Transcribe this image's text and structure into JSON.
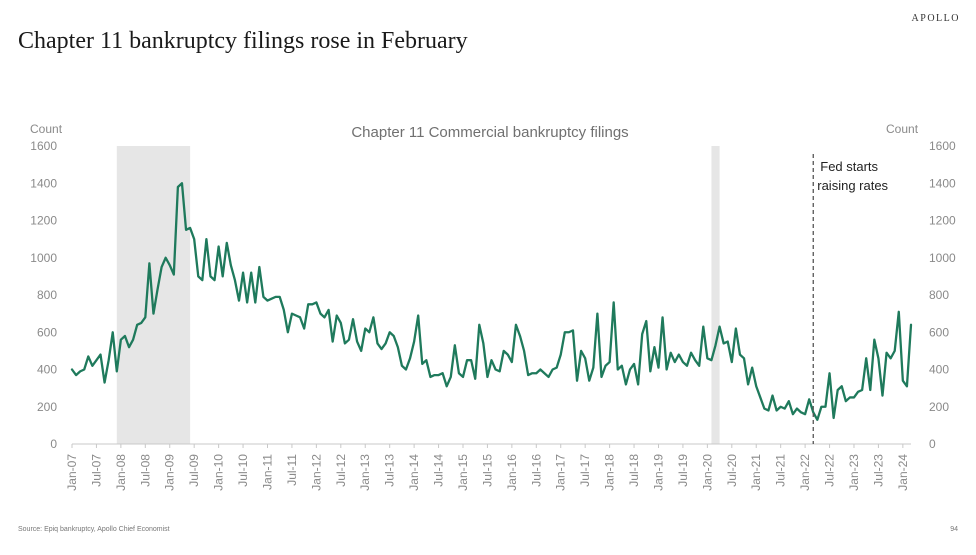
{
  "brand": "APOLLO",
  "headline": "Chapter 11 bankruptcy filings rose in February",
  "source": "Source: Epiq bankruptcy, Apollo Chief Economist",
  "page_number": "94",
  "colors": {
    "line": "#1f7a5c",
    "recession": "#e6e6e6",
    "axis_text": "#8a8a8a",
    "event_line": "#555555"
  },
  "chart_data": {
    "type": "line",
    "title": "Chapter 11 Commercial bankruptcy filings",
    "ylabel_left": "Count",
    "ylabel_right": "Count",
    "ylim": [
      0,
      1600
    ],
    "yticks": [
      0,
      200,
      400,
      600,
      800,
      1000,
      1200,
      1400,
      1600
    ],
    "x_start": "2007-01",
    "x_end": "2024-02",
    "xtick_labels": [
      "Jan-07",
      "Jul-07",
      "Jan-08",
      "Jul-08",
      "Jan-09",
      "Jul-09",
      "Jan-10",
      "Jul-10",
      "Jan-11",
      "Jul-11",
      "Jan-12",
      "Jul-12",
      "Jan-13",
      "Jul-13",
      "Jan-14",
      "Jul-14",
      "Jan-15",
      "Jul-15",
      "Jan-16",
      "Jul-16",
      "Jan-17",
      "Jul-17",
      "Jan-18",
      "Jul-18",
      "Jan-19",
      "Jul-19",
      "Jan-20",
      "Jul-20",
      "Jan-21",
      "Jul-21",
      "Jan-22",
      "Jul-22",
      "Jan-23",
      "Jul-23",
      "Jan-24"
    ],
    "recessions": [
      {
        "start": "2007-12",
        "end": "2009-06"
      },
      {
        "start": "2020-02",
        "end": "2020-04"
      }
    ],
    "annotation": {
      "date": "2022-03",
      "label_line1": "Fed starts",
      "label_line2": "raising rates"
    },
    "series": [
      {
        "name": "Chapter 11 Commercial bankruptcy filings",
        "values": [
          400,
          370,
          390,
          400,
          470,
          420,
          450,
          480,
          330,
          450,
          600,
          390,
          560,
          580,
          520,
          560,
          640,
          650,
          680,
          970,
          700,
          830,
          950,
          1000,
          960,
          910,
          1380,
          1400,
          1150,
          1160,
          1100,
          900,
          880,
          1100,
          900,
          880,
          1060,
          900,
          1080,
          960,
          880,
          770,
          920,
          760,
          920,
          760,
          950,
          790,
          770,
          780,
          790,
          790,
          720,
          600,
          700,
          690,
          680,
          620,
          750,
          750,
          760,
          700,
          680,
          720,
          550,
          690,
          650,
          540,
          560,
          670,
          550,
          500,
          620,
          600,
          680,
          540,
          510,
          540,
          600,
          580,
          520,
          420,
          400,
          460,
          550,
          690,
          430,
          450,
          360,
          370,
          370,
          380,
          310,
          360,
          530,
          380,
          360,
          450,
          450,
          350,
          640,
          540,
          360,
          450,
          400,
          390,
          500,
          480,
          440,
          640,
          580,
          500,
          370,
          380,
          380,
          400,
          380,
          360,
          400,
          410,
          480,
          600,
          600,
          610,
          340,
          500,
          460,
          340,
          410,
          700,
          360,
          420,
          440,
          760,
          400,
          420,
          320,
          400,
          430,
          320,
          590,
          660,
          390,
          520,
          410,
          680,
          400,
          490,
          440,
          480,
          440,
          420,
          490,
          450,
          420,
          630,
          460,
          450,
          530,
          630,
          540,
          550,
          440,
          620,
          480,
          460,
          320,
          410,
          310,
          250,
          190,
          180,
          260,
          180,
          200,
          190,
          230,
          160,
          190,
          170,
          160,
          240,
          170,
          130,
          200,
          200,
          380,
          140,
          290,
          310,
          230,
          250,
          250,
          280,
          290,
          460,
          290,
          560,
          460,
          260,
          490,
          460,
          500,
          710,
          340,
          310,
          640
        ]
      }
    ]
  }
}
